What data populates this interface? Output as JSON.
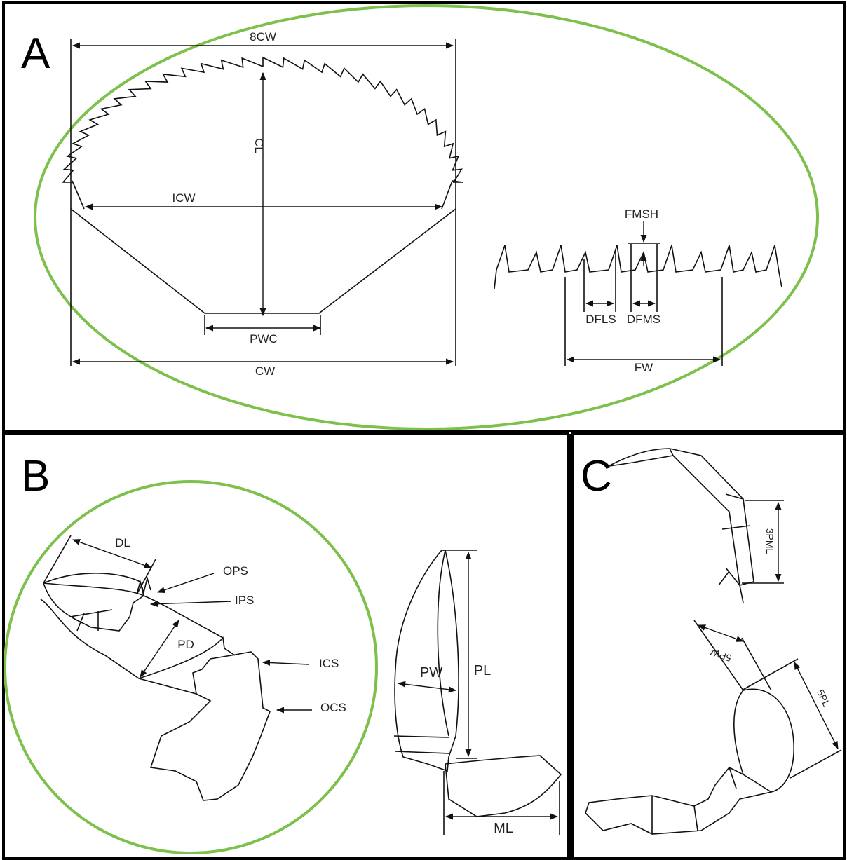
{
  "panels": [
    {
      "label": "A",
      "measurements": [
        "8CW",
        "CL",
        "ICW",
        "PWC",
        "CW",
        "FMSH",
        "DFLS",
        "DFMS",
        "FW"
      ]
    },
    {
      "label": "B",
      "measurements": [
        "DL",
        "OPS",
        "IPS",
        "PD",
        "ICS",
        "OCS",
        "PW",
        "PL",
        "ML"
      ]
    },
    {
      "label": "C",
      "measurements": [
        "3PML",
        "5PW",
        "5PL"
      ]
    }
  ]
}
